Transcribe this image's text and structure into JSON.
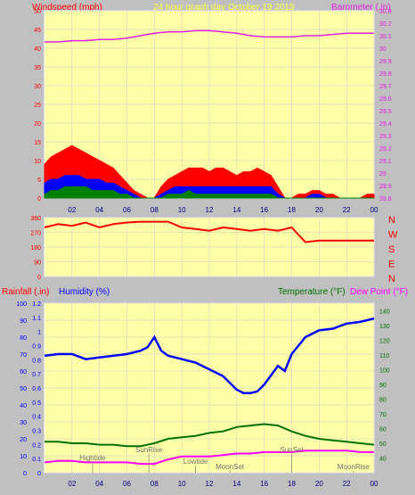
{
  "header": {
    "left_label": "Windspeed (mph)",
    "center_label": "24 hour graph day   October 19 2019",
    "right_label": "Barometer (.in)"
  },
  "bottom_header": {
    "rainfall_label": "Rainfall (.in)",
    "humidity_label": "Humidity (%)",
    "temperature_label": "Temperature (°F)",
    "dewpoint_label": "Dew Point (°F)"
  },
  "colors": {
    "background": "#c0c0c0",
    "plot_bg": "#ffffa8",
    "grid": "#c8c8c8",
    "wind_gust": "#ff0000",
    "wind_avg": "#0000ff",
    "wind_low": "#008000",
    "barometer": "#e020e0",
    "direction": "#ff0000",
    "humidity": "#0000ff",
    "temperature": "#007000",
    "dewpoint": "#ff00ff",
    "header_yellow": "#ffff40",
    "axis_red": "#ff0000"
  },
  "chart_data": [
    {
      "type": "area",
      "title": "24 hour graph day   October 19 2019",
      "x_ticks": [
        "02",
        "04",
        "06",
        "08",
        "10",
        "12",
        "14",
        "16",
        "18",
        "20",
        "22",
        "00"
      ],
      "xlim": [
        0,
        24
      ],
      "ylabel_left": "Windspeed (mph)",
      "ylim_left": [
        0,
        50
      ],
      "y_ticks_left": [
        "0",
        "5",
        "10",
        "15",
        "20",
        "25",
        "30",
        "35",
        "40",
        "45",
        "50"
      ],
      "ylabel_right": "Barometer (.in)",
      "ylim_right": [
        28.8,
        30.3
      ],
      "y_ticks_right": [
        "28.8",
        "28.9",
        "29",
        "29.1",
        "29.2",
        "29.3",
        "29.4",
        "29.5",
        "29.6",
        "29.7",
        "29.8",
        "29.9",
        "30",
        "30.1",
        "30.2",
        "30.3"
      ],
      "grid": true,
      "series": [
        {
          "axis": "right",
          "x": [
            0,
            1,
            2,
            3,
            4,
            5,
            6,
            7,
            8,
            9,
            10,
            11,
            12,
            13,
            14,
            15,
            16,
            17,
            18,
            19,
            20,
            21,
            22,
            23,
            24
          ],
          "values": [
            30.05,
            30.05,
            30.06,
            30.06,
            30.07,
            30.07,
            30.08,
            30.1,
            30.12,
            30.13,
            30.13,
            30.14,
            30.14,
            30.13,
            30.12,
            30.1,
            30.09,
            30.09,
            30.09,
            30.1,
            30.1,
            30.11,
            30.12,
            30.12,
            30.12
          ]
        },
        {
          "axis": "left",
          "x": [
            0,
            0.5,
            1,
            1.5,
            2,
            2.5,
            3,
            3.5,
            4,
            4.5,
            5,
            5.5,
            6,
            6.5,
            7,
            7.5,
            8,
            8.5,
            9,
            9.5,
            10,
            10.5,
            11,
            11.5,
            12,
            12.5,
            13,
            13.5,
            14,
            14.5,
            15,
            15.5,
            16,
            16.5,
            17,
            17.5,
            18,
            18.5,
            19,
            19.5,
            20,
            20.5,
            21,
            21.5,
            22,
            22.5,
            23,
            23.5,
            24
          ],
          "values": [
            9,
            11,
            12,
            13,
            14,
            13,
            12,
            11,
            10,
            9,
            8,
            6,
            4,
            2,
            1,
            0,
            0,
            3,
            5,
            6,
            7,
            8,
            8,
            8,
            7,
            8,
            8,
            7,
            6,
            7,
            7,
            8,
            7,
            6,
            3,
            0,
            0,
            1,
            1,
            2,
            2,
            1,
            1,
            0,
            0,
            0,
            0,
            1,
            1
          ]
        },
        {
          "axis": "left",
          "x": [
            0,
            0.5,
            1,
            1.5,
            2,
            2.5,
            3,
            3.5,
            4,
            4.5,
            5,
            5.5,
            6,
            6.5,
            7,
            7.5,
            8,
            8.5,
            9,
            9.5,
            10,
            10.5,
            11,
            11.5,
            12,
            12.5,
            13,
            13.5,
            14,
            14.5,
            15,
            15.5,
            16,
            16.5,
            17,
            17.5,
            18,
            18.5,
            19,
            19.5,
            20,
            20.5,
            21,
            21.5,
            22,
            22.5,
            23,
            23.5,
            24
          ],
          "values": [
            4,
            5,
            5,
            6,
            6,
            6,
            5,
            5,
            5,
            4,
            4,
            3,
            2,
            1,
            0,
            0,
            0,
            1,
            2,
            3,
            3,
            3,
            3,
            3,
            3,
            3,
            3,
            3,
            3,
            3,
            3,
            3,
            3,
            3,
            1,
            0,
            0,
            0,
            0,
            1,
            1,
            0,
            0,
            0,
            0,
            0,
            0,
            0,
            0
          ]
        },
        {
          "axis": "left",
          "x": [
            0,
            0.5,
            1,
            1.5,
            2,
            2.5,
            3,
            3.5,
            4,
            4.5,
            5,
            5.5,
            6,
            6.5,
            7,
            7.5,
            8,
            8.5,
            9,
            9.5,
            10,
            10.5,
            11,
            11.5,
            12,
            12.5,
            13,
            13.5,
            14,
            14.5,
            15,
            15.5,
            16,
            16.5,
            17,
            17.5,
            18,
            18.5,
            19,
            19.5,
            20,
            20.5,
            21,
            21.5,
            22,
            22.5,
            23,
            23.5,
            24
          ],
          "values": [
            1,
            2,
            2,
            3,
            3,
            3,
            3,
            2,
            2,
            2,
            2,
            1,
            1,
            0,
            0,
            0,
            0,
            0,
            1,
            1,
            1,
            2,
            1,
            1,
            1,
            1,
            1,
            1,
            1,
            1,
            1,
            1,
            1,
            1,
            0,
            0,
            0,
            0,
            0,
            0,
            0,
            0,
            0,
            0,
            0,
            0,
            0,
            0,
            0
          ]
        }
      ]
    },
    {
      "type": "line",
      "x_ticks": [
        "02",
        "04",
        "06",
        "08",
        "10",
        "12",
        "14",
        "16",
        "18",
        "20",
        "22",
        "00"
      ],
      "xlim": [
        0,
        24
      ],
      "ylim": [
        0,
        360
      ],
      "y_ticks": [
        "0",
        "90",
        "180",
        "270",
        "360"
      ],
      "right_labels": [
        "N",
        "W",
        "S",
        "E",
        "N"
      ],
      "grid": true,
      "series": [
        {
          "x": [
            0,
            1,
            2,
            3,
            4,
            5,
            6,
            7,
            8,
            9,
            10,
            11,
            12,
            13,
            14,
            15,
            16,
            17,
            18,
            19,
            20,
            21,
            22,
            23,
            24
          ],
          "values": [
            300,
            320,
            310,
            330,
            300,
            320,
            330,
            335,
            335,
            335,
            300,
            290,
            280,
            300,
            290,
            280,
            290,
            280,
            300,
            210,
            220,
            220,
            220,
            220,
            220
          ]
        }
      ]
    },
    {
      "type": "line",
      "x_ticks": [
        "02",
        "04",
        "06",
        "08",
        "10",
        "12",
        "14",
        "16",
        "18",
        "20",
        "22",
        "00"
      ],
      "xlim": [
        0,
        24
      ],
      "ylabel_left": "Rainfall (.in)",
      "ylim_rain": [
        0,
        1.2
      ],
      "y_ticks_rain": [
        "0",
        "0.1",
        "0.2",
        "0.3",
        "0.4",
        "0.5",
        "0.6",
        "0.7",
        "0.8",
        "0.9",
        "1",
        "1.1",
        "1.2"
      ],
      "ylim_humidity": [
        0,
        100
      ],
      "y_ticks_humidity": [
        "0",
        "10",
        "20",
        "30",
        "40",
        "50",
        "60",
        "70",
        "80",
        "90",
        "100"
      ],
      "ylabel_right": "Temperature (°F)",
      "ylim_temp": [
        30,
        145
      ],
      "y_ticks_temp": [
        "40",
        "50",
        "60",
        "70",
        "80",
        "90",
        "100",
        "110",
        "120",
        "130",
        "140"
      ],
      "grid": true,
      "series": [
        {
          "axis": "humidity",
          "x": [
            0,
            1,
            2,
            3,
            4,
            5,
            6,
            7,
            7.5,
            8,
            8.5,
            9,
            10,
            11,
            12,
            13,
            14,
            14.5,
            15,
            15.5,
            16,
            17,
            17.5,
            18,
            19,
            20,
            21,
            22,
            23,
            24
          ],
          "values": [
            69,
            70,
            70,
            67,
            68,
            69,
            70,
            72,
            74,
            80,
            72,
            69,
            67,
            65,
            61,
            57,
            49,
            47,
            47,
            48,
            52,
            63,
            60,
            70,
            80,
            84,
            85,
            88,
            89,
            91
          ]
        },
        {
          "axis": "temp",
          "x": [
            0,
            1,
            2,
            3,
            4,
            5,
            6,
            7,
            8,
            9,
            10,
            11,
            12,
            13,
            14,
            15,
            16,
            17,
            18,
            19,
            20,
            21,
            22,
            23,
            24
          ],
          "values": [
            51,
            51,
            50,
            50,
            49,
            49,
            48,
            48,
            50,
            53,
            54,
            55,
            57,
            58,
            61,
            62,
            63,
            62,
            58,
            55,
            53,
            52,
            51,
            50,
            49
          ]
        },
        {
          "axis": "temp",
          "x": [
            0,
            1,
            2,
            3,
            4,
            5,
            6,
            7,
            8,
            9,
            10,
            11,
            12,
            13,
            14,
            15,
            16,
            17,
            18,
            19,
            20,
            21,
            22,
            23,
            24
          ],
          "values": [
            37,
            38,
            38,
            37,
            37,
            37,
            37,
            36,
            36,
            39,
            41,
            41,
            41,
            42,
            43,
            43,
            44,
            44,
            44,
            45,
            45,
            45,
            45,
            44,
            44
          ]
        },
        {
          "axis": "rain",
          "x": [
            0,
            24
          ],
          "values": [
            0,
            0
          ]
        }
      ],
      "annotations": [
        "Hightide",
        "SunRise",
        "Lowtide",
        "MoonSet",
        "SunSet",
        "MoonRise"
      ]
    }
  ]
}
